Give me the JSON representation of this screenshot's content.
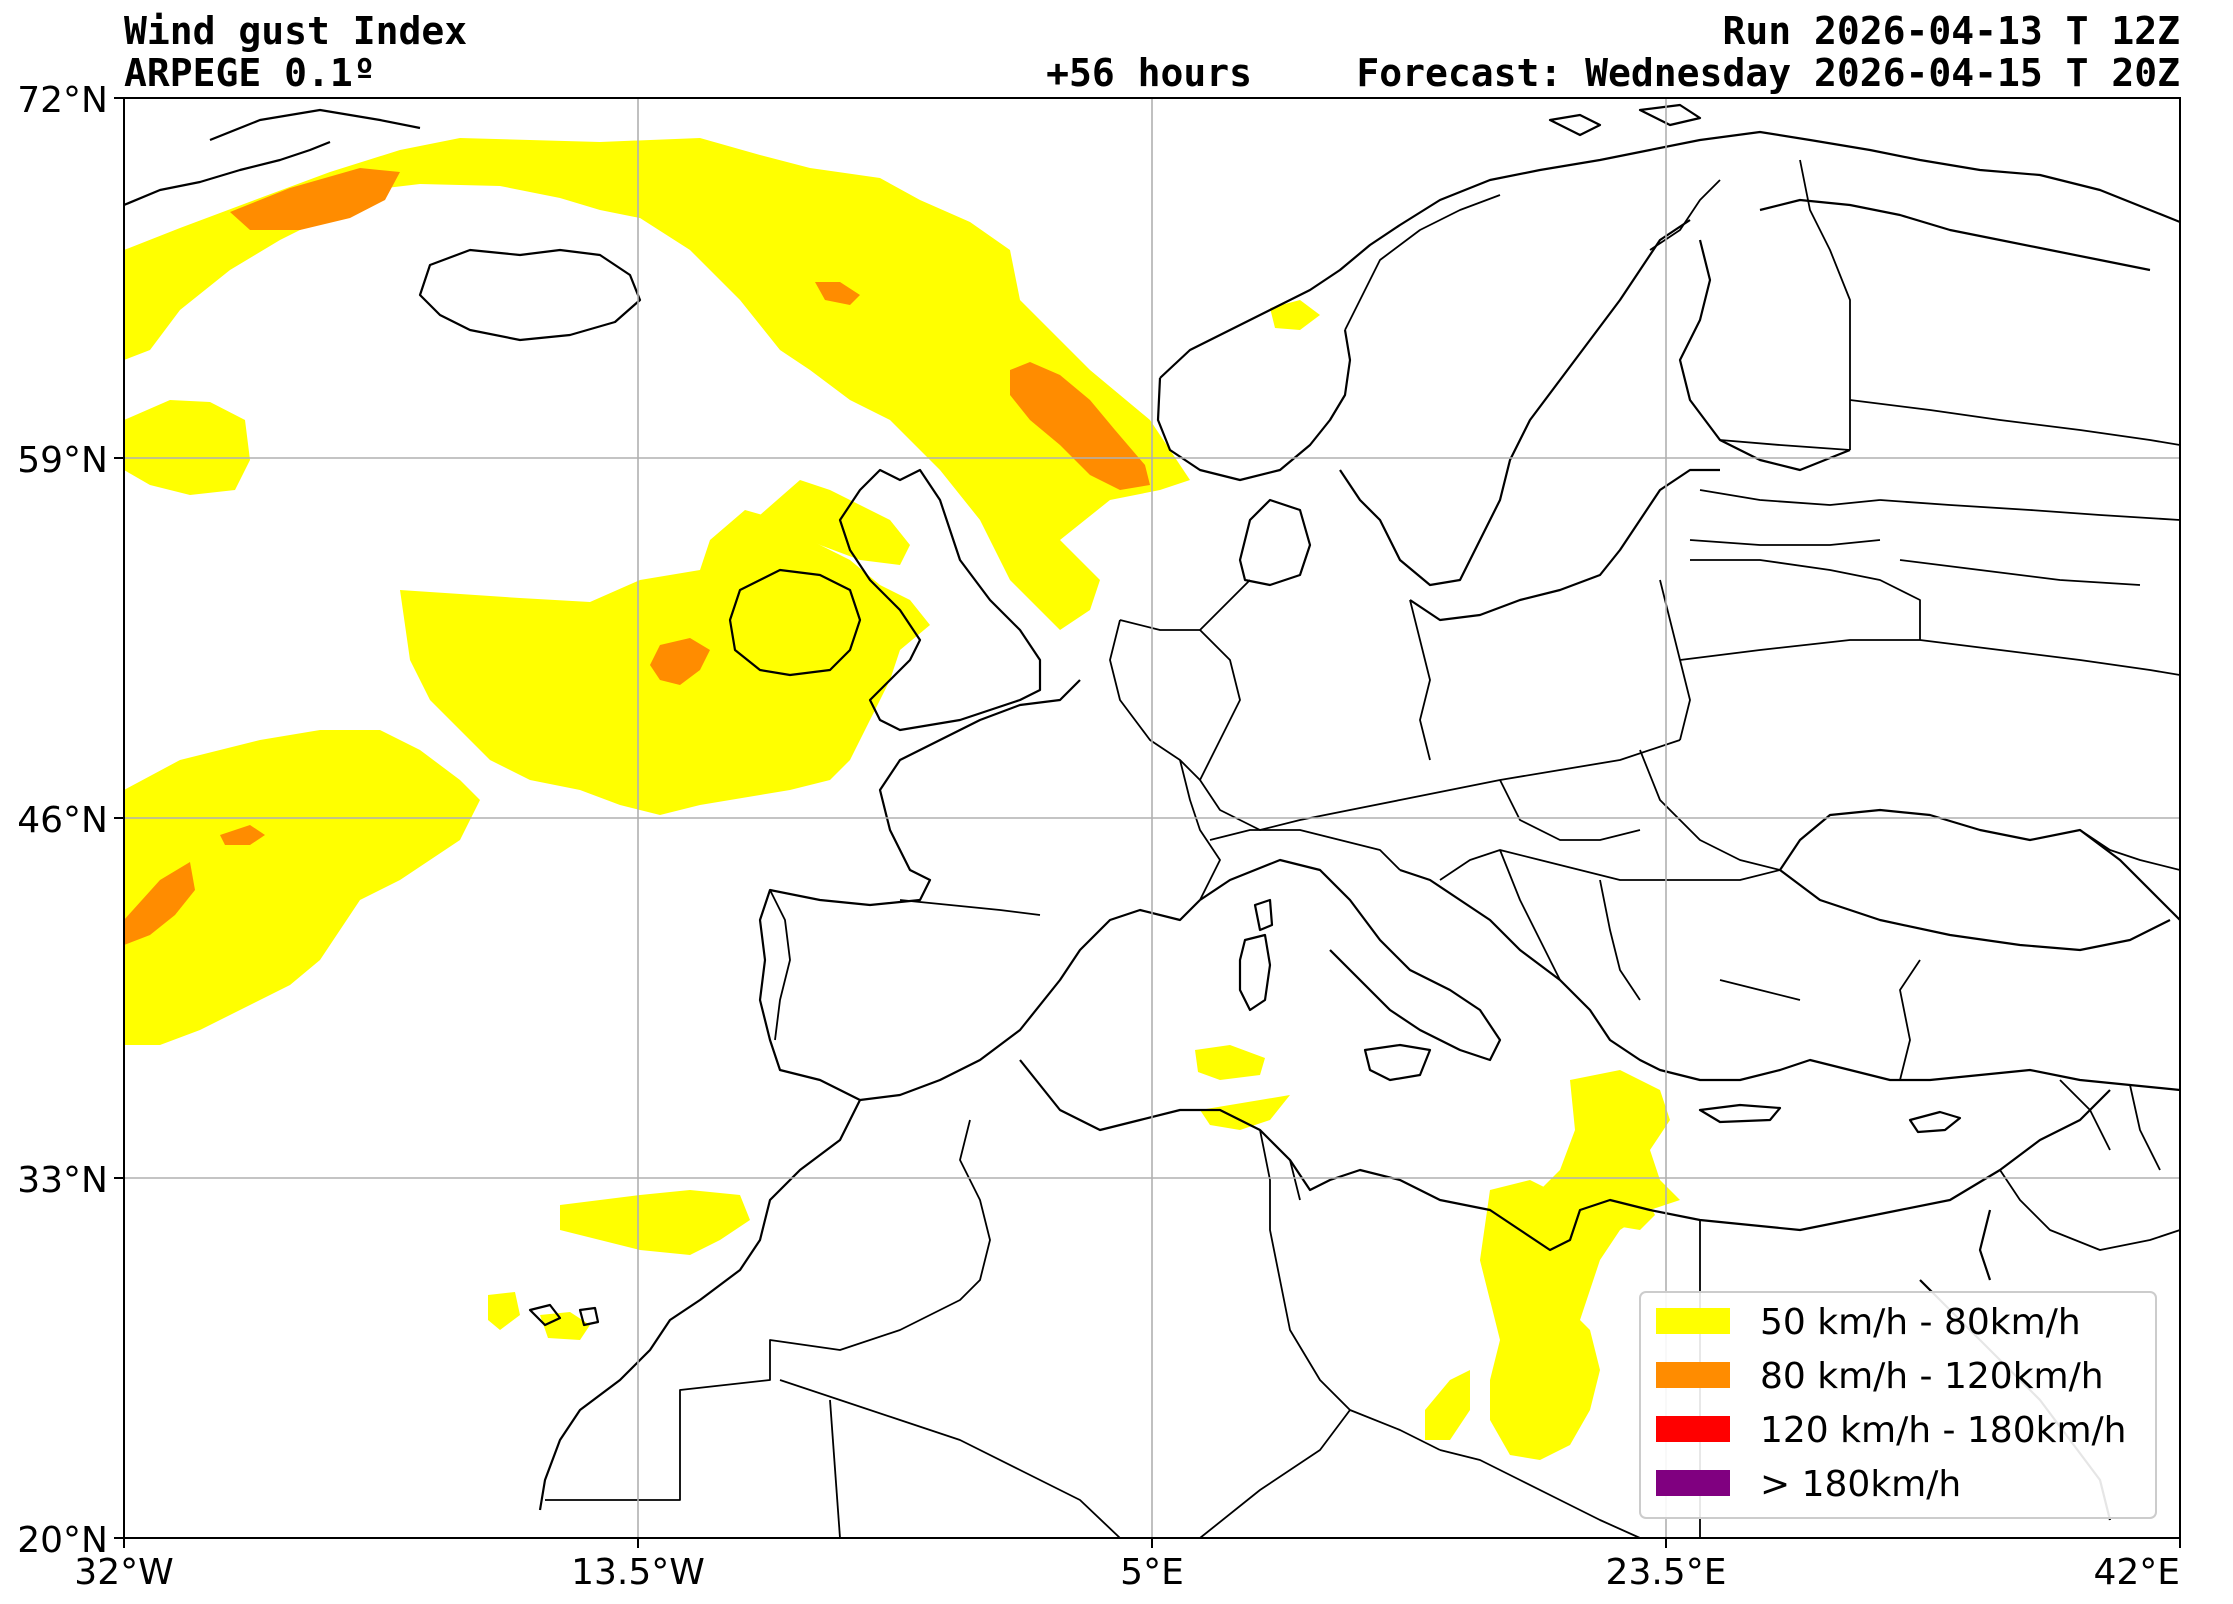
{
  "header": {
    "title": "Wind gust Index",
    "model": "ARPEGE 0.1º",
    "run": "Run 2026-04-13 T 12Z",
    "lead": "+56 hours",
    "forecast": "Forecast: Wednesday 2026-04-15 T 20Z"
  },
  "axes": {
    "lat_ticks": [
      "72°N",
      "59°N",
      "46°N",
      "33°N",
      "20°N"
    ],
    "lon_ticks": [
      "32°W",
      "13.5°W",
      "5°E",
      "23.5°E",
      "42°E"
    ],
    "lat_range": [
      20,
      72
    ],
    "lon_range": [
      -32,
      42
    ],
    "grid": true
  },
  "legend": {
    "placement": "bottom-right",
    "items": [
      {
        "label": "50 km/h - 80km/h",
        "color": "#ffff00"
      },
      {
        "label": "80 km/h - 120km/h",
        "color": "#ff8c00"
      },
      {
        "label": "120 km/h - 180km/h",
        "color": "#ff0000"
      },
      {
        "label": "> 180km/h",
        "color": "#800080"
      }
    ]
  },
  "colors": {
    "gust_50_80": "#ffff00",
    "gust_80_120": "#ff8c00",
    "gust_120_180": "#ff0000",
    "gust_180_plus": "#800080"
  }
}
